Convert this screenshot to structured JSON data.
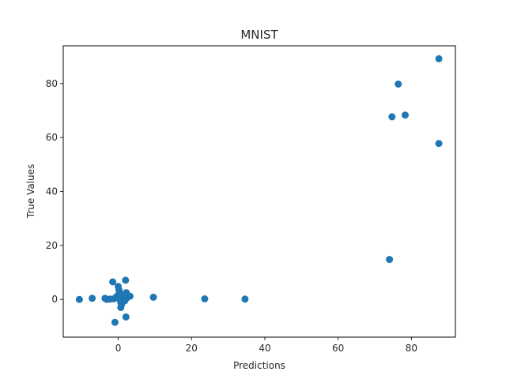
{
  "chart_data": {
    "type": "scatter",
    "title": "MNIST",
    "xlabel": "Predictions",
    "ylabel": "True Values",
    "xlim": [
      -15,
      92
    ],
    "ylim": [
      -14,
      94
    ],
    "xticks": [
      0,
      20,
      40,
      60,
      80
    ],
    "yticks": [
      0,
      20,
      40,
      60,
      80
    ],
    "grid": false,
    "point_color": "#1f77b4",
    "points": [
      {
        "x": -10.6,
        "y": 0.0
      },
      {
        "x": -7.1,
        "y": 0.4
      },
      {
        "x": -3.6,
        "y": 0.4
      },
      {
        "x": -3.1,
        "y": 0.0
      },
      {
        "x": -2.2,
        "y": 0.1
      },
      {
        "x": -1.5,
        "y": 6.5
      },
      {
        "x": -1.2,
        "y": 0.2
      },
      {
        "x": -0.9,
        "y": -8.5
      },
      {
        "x": -0.6,
        "y": 0.8
      },
      {
        "x": -0.3,
        "y": 1.2
      },
      {
        "x": 0.0,
        "y": 4.8
      },
      {
        "x": 0.2,
        "y": 3.5
      },
      {
        "x": 0.3,
        "y": 2.8
      },
      {
        "x": 0.4,
        "y": 2.0
      },
      {
        "x": 0.5,
        "y": 1.5
      },
      {
        "x": 0.6,
        "y": -0.5
      },
      {
        "x": 0.7,
        "y": -1.2
      },
      {
        "x": 0.8,
        "y": 0.5
      },
      {
        "x": 0.9,
        "y": -2.0
      },
      {
        "x": 0.7,
        "y": -3.0
      },
      {
        "x": 1.0,
        "y": 1.0
      },
      {
        "x": 1.2,
        "y": 0.0
      },
      {
        "x": 1.4,
        "y": 0.8
      },
      {
        "x": 1.6,
        "y": 1.5
      },
      {
        "x": 1.8,
        "y": -0.5
      },
      {
        "x": 2.0,
        "y": 7.1
      },
      {
        "x": 2.1,
        "y": -6.5
      },
      {
        "x": 2.2,
        "y": 2.5
      },
      {
        "x": 2.4,
        "y": 0.6
      },
      {
        "x": 3.2,
        "y": 1.2
      },
      {
        "x": 9.6,
        "y": 0.8
      },
      {
        "x": 23.6,
        "y": 0.2
      },
      {
        "x": 34.6,
        "y": 0.1
      },
      {
        "x": 74.0,
        "y": 14.8
      },
      {
        "x": 74.7,
        "y": 67.7
      },
      {
        "x": 76.4,
        "y": 79.8
      },
      {
        "x": 78.3,
        "y": 68.3
      },
      {
        "x": 87.5,
        "y": 89.2
      },
      {
        "x": 87.5,
        "y": 57.8
      }
    ]
  }
}
